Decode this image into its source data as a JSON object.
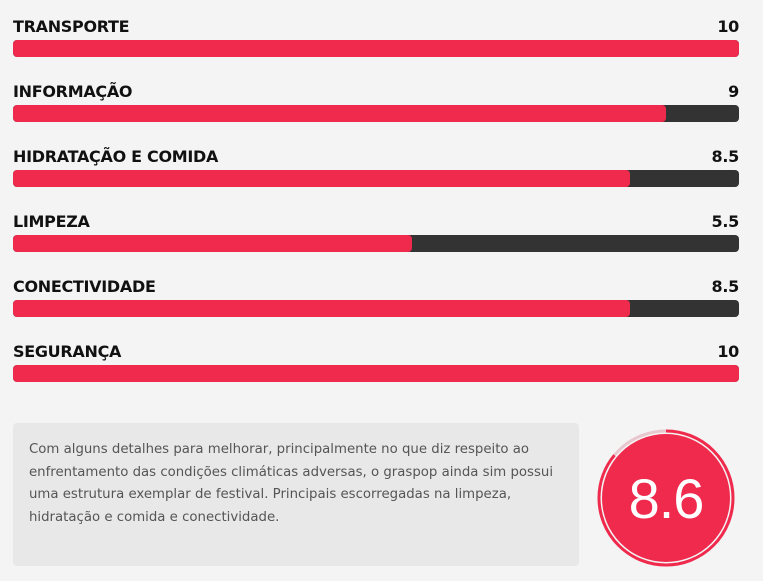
{
  "ratings": [
    {
      "label": "TRANSPORTE",
      "value": "10",
      "score": 10
    },
    {
      "label": "INFORMAÇÃO",
      "value": "9",
      "score": 9
    },
    {
      "label": "HIDRATAÇÃO E COMIDA",
      "value": "8.5",
      "score": 8.5
    },
    {
      "label": "LIMPEZA",
      "value": "5.5",
      "score": 5.5
    },
    {
      "label": "CONECTIVIDADE",
      "value": "8.5",
      "score": 8.5
    },
    {
      "label": "SEGURANÇA",
      "value": "10",
      "score": 10
    }
  ],
  "max_score": 10,
  "summary": {
    "text": "Com alguns detalhes para melhorar, principalmente no que diz respeito ao enfrentamento das condições climáticas adversas, o graspop ainda sim possui uma estrutura exemplar de festival. Principais escorregadas na limpeza, hidratação e comida e conectividade."
  },
  "overall": {
    "value": "8.6",
    "score": 8.6
  },
  "colors": {
    "accent": "#ef2a4d",
    "track": "#333333",
    "background": "#f4f4f4"
  }
}
